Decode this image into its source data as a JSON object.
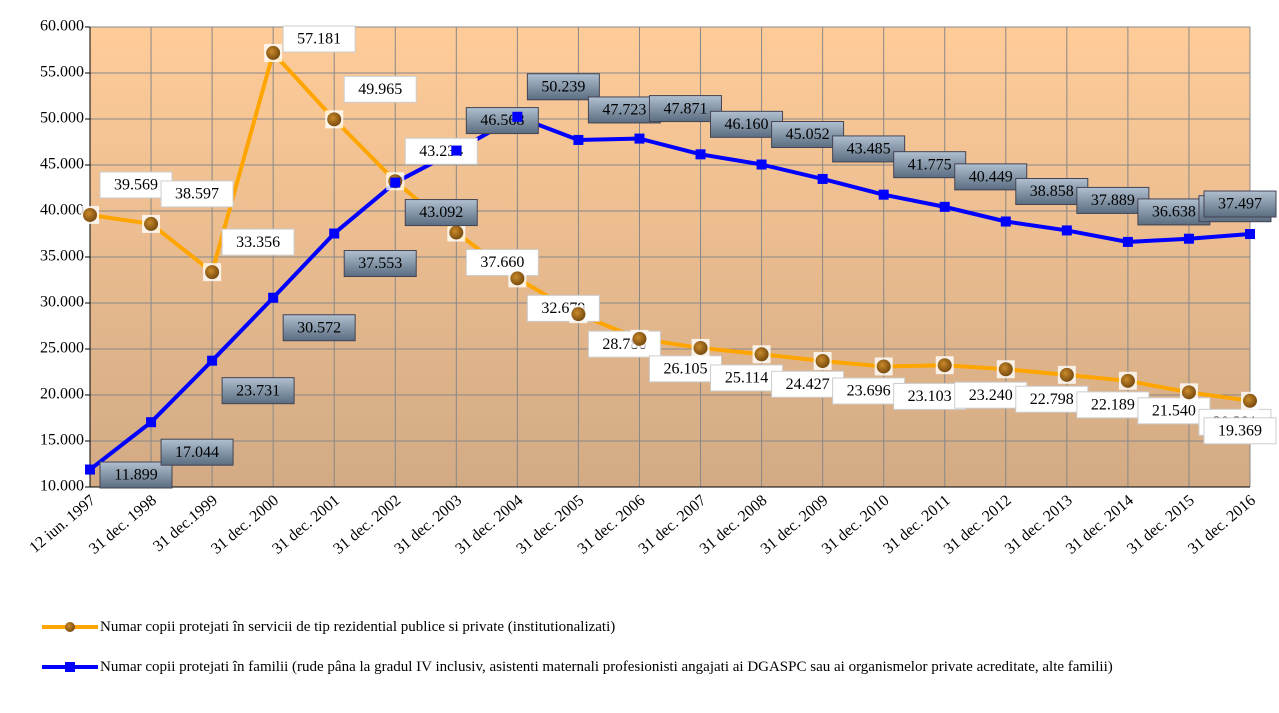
{
  "chart_data": {
    "type": "line",
    "categories": [
      "12 iun. 1997",
      "31 dec. 1998",
      "31 dec.1999",
      "31 dec. 2000",
      "31 dec. 2001",
      "31 dec. 2002",
      "31 dec. 2003",
      "31 dec. 2004",
      "31 dec. 2005",
      "31 dec. 2006",
      "31 dec. 2007",
      "31 dec. 2008",
      "31 dec. 2009",
      "31 dec. 2010",
      "31 dec. 2011",
      "31 dec. 2012",
      "31 dec. 2013",
      "31 dec. 2014",
      "31 dec. 2015",
      "31 dec. 2016"
    ],
    "series": [
      {
        "name": "Numar copii protejati în servicii de tip rezidential publice si private (institutionalizati)",
        "color": "#ffa500",
        "values": [
          39569,
          38597,
          33356,
          57181,
          49965,
          43234,
          37660,
          32679,
          28786,
          26105,
          25114,
          24427,
          23696,
          23103,
          23240,
          22798,
          22189,
          21540,
          20291,
          19369
        ],
        "value_labels": [
          "39.569",
          "38.597",
          "33.356",
          "57.181",
          "49.965",
          "43.234",
          "37.660",
          "32.679",
          "28.786",
          "26.105",
          "25.114",
          "24.427",
          "23.696",
          "23.103",
          "23.240",
          "22.798",
          "22.189",
          "21.540",
          "20.291",
          "19.369"
        ]
      },
      {
        "name": "Numar copii protejati în familii (rude pâna la gradul IV inclusiv, asistenti maternali profesionisti angajati ai DGASPC sau ai organismelor private acreditate, alte familii)",
        "color": "#0000ff",
        "values": [
          11899,
          17044,
          23731,
          30572,
          37553,
          43092,
          46568,
          50239,
          47723,
          47871,
          46160,
          45052,
          43485,
          41775,
          40449,
          38858,
          37889,
          36638,
          36988,
          37497
        ],
        "value_labels": [
          "11.899",
          "17.044",
          "23.731",
          "30.572",
          "37.553",
          "43.092",
          "46.568",
          "50.239",
          "47.723",
          "47.871",
          "46.160",
          "45.052",
          "43.485",
          "41.775",
          "40.449",
          "38.858",
          "37.889",
          "36.638",
          "36.988",
          "37.497"
        ]
      }
    ],
    "ylim": [
      10000,
      60000
    ],
    "yticks": [
      {
        "value": 10000,
        "label": "10.000"
      },
      {
        "value": 15000,
        "label": "15.000"
      },
      {
        "value": 20000,
        "label": "20.000"
      },
      {
        "value": 25000,
        "label": "25.000"
      },
      {
        "value": 30000,
        "label": "30.000"
      },
      {
        "value": 35000,
        "label": "35.000"
      },
      {
        "value": 40000,
        "label": "40.000"
      },
      {
        "value": 45000,
        "label": "45.000"
      },
      {
        "value": 50000,
        "label": "50.000"
      },
      {
        "value": 55000,
        "label": "55.000"
      },
      {
        "value": 60000,
        "label": "60.000"
      }
    ],
    "grid": true,
    "legend": "bottom"
  }
}
